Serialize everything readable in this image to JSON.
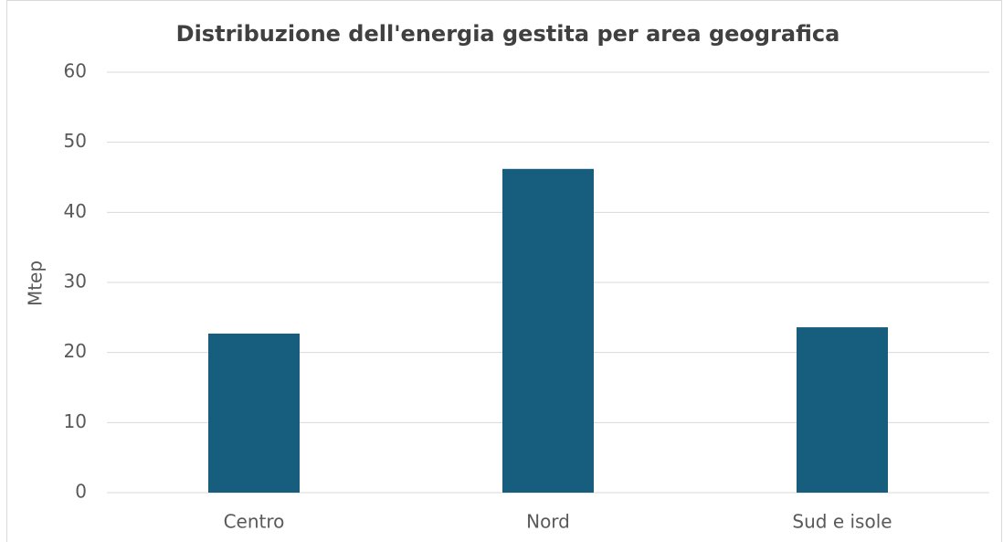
{
  "chart_data": {
    "type": "bar",
    "title": "Distribuzione dell'energia gestita per area geografica",
    "y_label": "Mtep",
    "categories": [
      "Centro",
      "Nord",
      "Sud e isole"
    ],
    "values": [
      22.7,
      46.2,
      23.6
    ],
    "color": "#175e7e",
    "ylim": [
      0,
      60
    ],
    "yticks": [
      0,
      10,
      20,
      30,
      40,
      50,
      60
    ],
    "grid": true
  }
}
